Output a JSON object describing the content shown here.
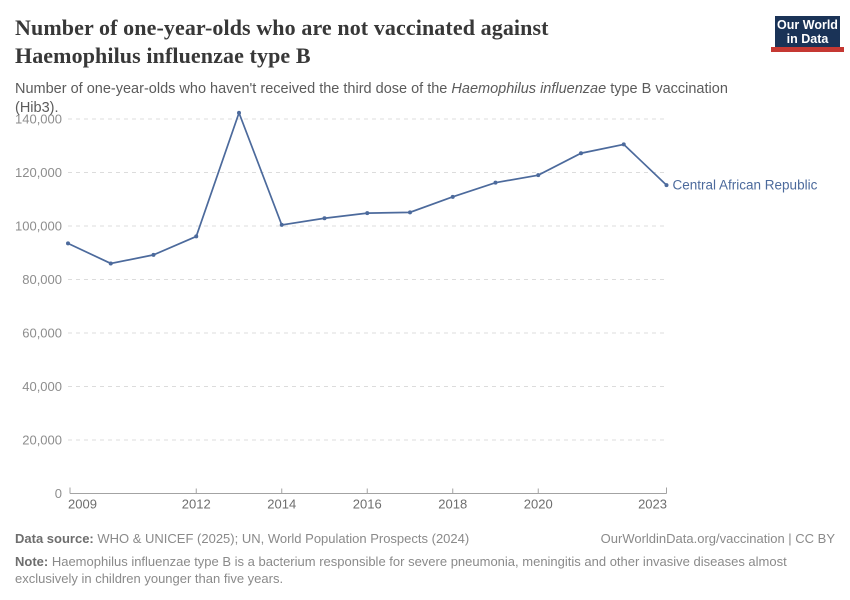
{
  "header": {
    "title_line1": "Number of one-year-olds who are not vaccinated against",
    "title_line2": "Haemophilus influenzae type B",
    "subtitle_pre": "Number of one-year-olds who haven't received the third dose of the ",
    "subtitle_italic": "Haemophilus influenzae",
    "subtitle_post": " type B vaccination (Hib3).",
    "logo_line1": "Our World",
    "logo_line2": "in Data",
    "logo_bg_color": "#1a3357",
    "logo_bar_color": "#c53832"
  },
  "chart_data": {
    "type": "line",
    "title": "Number of one-year-olds who are not vaccinated against Haemophilus influenzae type B",
    "x": [
      2009,
      2010,
      2011,
      2012,
      2013,
      2014,
      2015,
      2016,
      2017,
      2018,
      2019,
      2020,
      2021,
      2022,
      2023
    ],
    "series": [
      {
        "name": "Central African Republic",
        "values": [
          93500,
          86000,
          89200,
          96100,
          142300,
          100400,
          102900,
          104800,
          105100,
          110900,
          116200,
          119000,
          127200,
          130500,
          115300
        ]
      }
    ],
    "xlabel": "",
    "ylabel": "",
    "xlim": [
      2009,
      2023
    ],
    "ylim": [
      0,
      145000
    ],
    "y_ticks": [
      0,
      20000,
      40000,
      60000,
      80000,
      100000,
      120000,
      140000
    ],
    "x_tick_labels": [
      2009,
      2012,
      2014,
      2016,
      2018,
      2020,
      2023
    ],
    "grid": "horizontal-dashed",
    "legend_position": "line-end-label",
    "line_color": "#4c6a9c",
    "entity_label_color": "#4c6a9c",
    "y_tick_label_color": "#8d8d8d",
    "x_tick_label_color": "#6e6e6e"
  },
  "footer": {
    "datasource_label": "Data source:",
    "datasource_text": " WHO & UNICEF (2025); UN, World Population Prospects (2024)",
    "link_text": "OurWorldinData.org/vaccination | CC BY",
    "note_label": "Note:",
    "note_text": " Haemophilus influenzae type B is a bacterium responsible for severe pneumonia, meningitis and other invasive diseases almost exclusively in children younger than five years."
  }
}
